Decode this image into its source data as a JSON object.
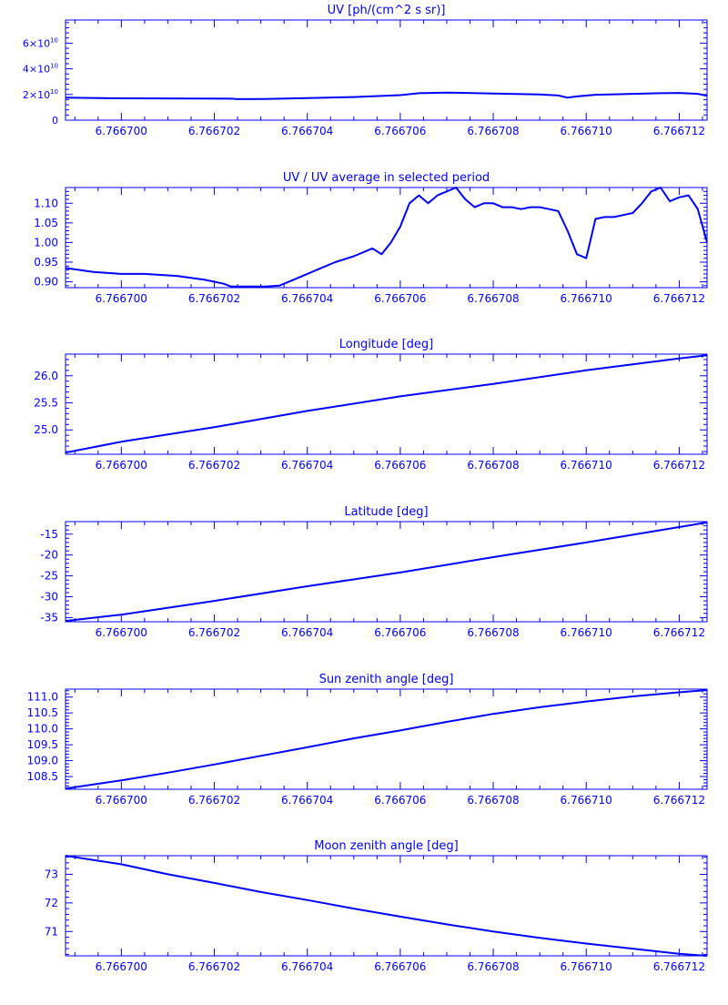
{
  "figure": {
    "color": "#0000ff",
    "background": "#ffffff"
  },
  "chart_data": [
    {
      "type": "line",
      "title": "UV [ph/(cm^2 s sr)]",
      "xlabel": "",
      "ylabel": "",
      "xlim": [
        6.7666988,
        6.7667126
      ],
      "ylim": [
        0,
        78000000000.0
      ],
      "x_ticks": [
        "6.766700",
        "6.766702",
        "6.766704",
        "6.766706",
        "6.766708",
        "6.766710",
        "6.766712"
      ],
      "y_ticks": [
        {
          "value": 0,
          "mantissa": "0",
          "exponent": ""
        },
        {
          "value": 20000000000.0,
          "mantissa": "2×10",
          "exponent": "10"
        },
        {
          "value": 40000000000.0,
          "mantissa": "4×10",
          "exponent": "10"
        },
        {
          "value": 60000000000.0,
          "mantissa": "6×10",
          "exponent": "10"
        }
      ],
      "grid": false,
      "series": [
        {
          "x": [
            6.7666988,
            6.7667,
            6.76670236,
            6.7667025,
            6.76670308,
            6.766704,
            6.766705,
            6.766706,
            6.7667064,
            6.766707,
            6.766708,
            6.766709,
            6.7667094,
            6.7667096,
            6.7667098,
            6.7667102,
            6.766711,
            6.7667116,
            6.766712,
            6.7667124,
            6.7667126
          ],
          "y": [
            17500000000.0,
            17000000000.0,
            16700000000.0,
            16400000000.0,
            16500000000.0,
            17200000000.0,
            18000000000.0,
            19500000000.0,
            21000000000.0,
            21500000000.0,
            20800000000.0,
            20000000000.0,
            19200000000.0,
            17500000000.0,
            18500000000.0,
            19800000000.0,
            20500000000.0,
            21000000000.0,
            21200000000.0,
            20500000000.0,
            19000000000.0
          ]
        }
      ]
    },
    {
      "type": "line",
      "title": "UV / UV average in selected period",
      "xlabel": "",
      "ylabel": "",
      "xlim": [
        6.7666988,
        6.7667126
      ],
      "ylim": [
        0.885,
        1.14
      ],
      "x_ticks": [
        "6.766700",
        "6.766702",
        "6.766704",
        "6.766706",
        "6.766708",
        "6.766710",
        "6.766712"
      ],
      "y_ticks": [
        {
          "value": 0.9,
          "label": "0.90"
        },
        {
          "value": 0.95,
          "label": "0.95"
        },
        {
          "value": 1.0,
          "label": "1.00"
        },
        {
          "value": 1.05,
          "label": "1.05"
        },
        {
          "value": 1.1,
          "label": "1.10"
        }
      ],
      "grid": false,
      "series": [
        {
          "x": [
            6.7666988,
            6.7666994,
            6.7667,
            6.7667005,
            6.7667012,
            6.7667018,
            6.7667022,
            6.76670236,
            6.76670258,
            6.7667025,
            6.7667028,
            6.7667031,
            6.7667034,
            6.7667037,
            6.766704,
            6.7667043,
            6.7667046,
            6.766705,
            6.7667054,
            6.7667056,
            6.7667058,
            6.766706,
            6.7667062,
            6.7667064,
            6.7667066,
            6.7667068,
            6.766707,
            6.7667072,
            6.7667074,
            6.7667076,
            6.7667078,
            6.766708,
            6.7667082,
            6.7667084,
            6.7667086,
            6.7667088,
            6.766709,
            6.7667092,
            6.7667094,
            6.7667096,
            6.7667098,
            6.76671,
            6.7667102,
            6.7667104,
            6.7667106,
            6.7667108,
            6.766711,
            6.7667112,
            6.7667114,
            6.7667116,
            6.7667118,
            6.766712,
            6.7667122,
            6.7667124,
            6.7667126
          ],
          "y": [
            0.935,
            0.925,
            0.92,
            0.92,
            0.915,
            0.905,
            0.895,
            0.888,
            0.888,
            0.888,
            0.888,
            0.888,
            0.89,
            0.905,
            0.92,
            0.935,
            0.95,
            0.965,
            0.985,
            0.97,
            1.0,
            1.04,
            1.1,
            1.12,
            1.1,
            1.12,
            1.13,
            1.14,
            1.11,
            1.09,
            1.1,
            1.1,
            1.09,
            1.09,
            1.085,
            1.09,
            1.09,
            1.085,
            1.08,
            1.03,
            0.97,
            0.96,
            1.06,
            1.065,
            1.065,
            1.07,
            1.075,
            1.1,
            1.13,
            1.14,
            1.105,
            1.115,
            1.12,
            1.085,
            1.0
          ]
        }
      ]
    },
    {
      "type": "line",
      "title": "Longitude [deg]",
      "xlabel": "",
      "ylabel": "",
      "xlim": [
        6.7666988,
        6.7667126
      ],
      "ylim": [
        24.55,
        26.4
      ],
      "x_ticks": [
        "6.766700",
        "6.766702",
        "6.766704",
        "6.766706",
        "6.766708",
        "6.766710",
        "6.766712"
      ],
      "y_ticks": [
        {
          "value": 25.0,
          "label": "25.0"
        },
        {
          "value": 25.5,
          "label": "25.5"
        },
        {
          "value": 26.0,
          "label": "26.0"
        }
      ],
      "grid": false,
      "series": [
        {
          "x": [
            6.7666988,
            6.7667,
            6.766702,
            6.766704,
            6.766706,
            6.766708,
            6.76671,
            6.766712,
            6.7667126
          ],
          "y": [
            24.58,
            24.78,
            25.05,
            25.35,
            25.62,
            25.85,
            26.1,
            26.32,
            26.38
          ]
        }
      ]
    },
    {
      "type": "line",
      "title": "Latitude [deg]",
      "xlabel": "",
      "ylabel": "",
      "xlim": [
        6.7666988,
        6.7667126
      ],
      "ylim": [
        -36,
        -12
      ],
      "x_ticks": [
        "6.766700",
        "6.766702",
        "6.766704",
        "6.766706",
        "6.766708",
        "6.766710",
        "6.766712"
      ],
      "y_ticks": [
        {
          "value": -35,
          "label": "-35"
        },
        {
          "value": -30,
          "label": "-30"
        },
        {
          "value": -25,
          "label": "-25"
        },
        {
          "value": -20,
          "label": "-20"
        },
        {
          "value": -15,
          "label": "-15"
        }
      ],
      "grid": false,
      "series": [
        {
          "x": [
            6.7666988,
            6.7667,
            6.766702,
            6.766704,
            6.766706,
            6.766708,
            6.76671,
            6.766712,
            6.7667126
          ],
          "y": [
            -35.8,
            -34.3,
            -31.0,
            -27.5,
            -24.2,
            -20.5,
            -17.0,
            -13.3,
            -12.2
          ]
        }
      ]
    },
    {
      "type": "line",
      "title": "Sun zenith angle [deg]",
      "xlabel": "",
      "ylabel": "",
      "xlim": [
        6.7666988,
        6.7667126
      ],
      "ylim": [
        108.1,
        111.25
      ],
      "x_ticks": [
        "6.766700",
        "6.766702",
        "6.766704",
        "6.766706",
        "6.766708",
        "6.766710",
        "6.766712"
      ],
      "y_ticks": [
        {
          "value": 108.5,
          "label": "108.5"
        },
        {
          "value": 109.0,
          "label": "109.0"
        },
        {
          "value": 109.5,
          "label": "109.5"
        },
        {
          "value": 110.0,
          "label": "110.0"
        },
        {
          "value": 110.5,
          "label": "110.5"
        },
        {
          "value": 111.0,
          "label": "111.0"
        }
      ],
      "grid": false,
      "series": [
        {
          "x": [
            6.7666988,
            6.7667,
            6.766701,
            6.766702,
            6.766703,
            6.766704,
            6.766705,
            6.766706,
            6.766707,
            6.766708,
            6.766709,
            6.76671,
            6.766711,
            6.766712,
            6.7667126
          ],
          "y": [
            108.12,
            108.38,
            108.62,
            108.88,
            109.15,
            109.42,
            109.7,
            109.95,
            110.22,
            110.47,
            110.68,
            110.86,
            111.02,
            111.15,
            111.22
          ]
        }
      ]
    },
    {
      "type": "line",
      "title": "Moon zenith angle [deg]",
      "xlabel": "",
      "ylabel": "",
      "xlim": [
        6.7666988,
        6.7667126
      ],
      "ylim": [
        70.15,
        73.65
      ],
      "x_ticks": [
        "6.766700",
        "6.766702",
        "6.766704",
        "6.766706",
        "6.766708",
        "6.766710",
        "6.766712"
      ],
      "y_ticks": [
        {
          "value": 71,
          "label": "71"
        },
        {
          "value": 72,
          "label": "72"
        },
        {
          "value": 73,
          "label": "73"
        }
      ],
      "grid": false,
      "series": [
        {
          "x": [
            6.7666988,
            6.7667,
            6.766701,
            6.766702,
            6.766703,
            6.766704,
            6.766705,
            6.766706,
            6.766707,
            6.766708,
            6.766709,
            6.76671,
            6.766711,
            6.766712,
            6.7667126
          ],
          "y": [
            73.65,
            73.35,
            73.0,
            72.7,
            72.38,
            72.1,
            71.8,
            71.52,
            71.25,
            71.0,
            70.78,
            70.58,
            70.4,
            70.22,
            70.15
          ]
        }
      ]
    }
  ]
}
